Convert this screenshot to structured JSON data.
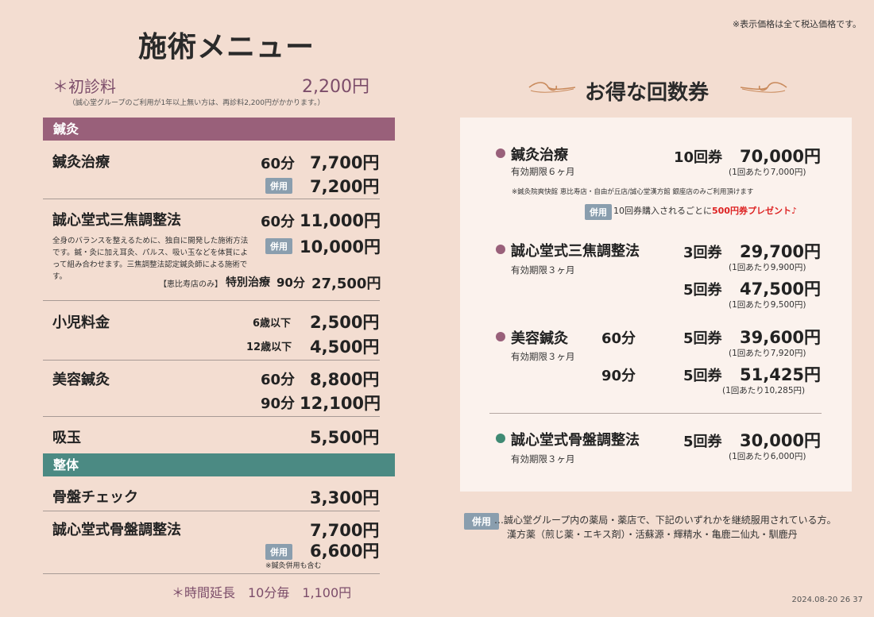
{
  "title": "施術メニュー",
  "tax_note": "※表示価格は全て税込価格です。",
  "first_visit": {
    "label": "＊初診料",
    "price": "2,200円",
    "note": "（誠心堂グループのご利用が1年以上無い方は、再診料2,200円がかかります。）"
  },
  "section_acupuncture": "鍼灸",
  "section_seitai": "整体",
  "combined_tag": "併用",
  "menu": {
    "hari": {
      "name": "鍼灸治療",
      "m60": "60分",
      "p60": "7,700円",
      "pc": "7,200円"
    },
    "sansho": {
      "name": "誠心堂式三焦調整法",
      "m60": "60分",
      "p60": "11,000円",
      "pc": "10,000円",
      "desc": "全身のバランスを整えるために、独自に開発した施術方法です。鍼・灸に加え耳灸、パルス、吸い玉などを体質によって組み合わせます。三焦調整法認定鍼灸師による施術です。",
      "special_prefix": "【恵比寿店のみ】",
      "special_name": "特別治療",
      "special_min": "90分",
      "special_price": "27,500円"
    },
    "child": {
      "name": "小児料金",
      "a1": "6歳以下",
      "p1": "2,500円",
      "a2": "12歳以下",
      "p2": "4,500円"
    },
    "biyo": {
      "name": "美容鍼灸",
      "m60": "60分",
      "p60": "8,800円",
      "m90": "90分",
      "p90": "12,100円"
    },
    "kyugyoku": {
      "name": "吸玉",
      "price": "5,500円"
    },
    "kotsuban_check": {
      "name": "骨盤チェック",
      "price": "3,300円"
    },
    "kotsuban": {
      "name": "誠心堂式骨盤調整法",
      "price": "7,700円",
      "pc": "6,600円",
      "note": "※鍼灸併用も含む"
    }
  },
  "extension": "＊時間延長　10分毎　1,100円",
  "coupon": {
    "title": "お得な回数券",
    "hari": {
      "name": "鍼灸治療",
      "valid": "有効期限６ヶ月",
      "tix": "10回券",
      "price": "70,000円",
      "per": "(1回あたり7,000円)",
      "note": "※鍼灸院爽快館 恵比寿店・自由が丘店/誠心堂漢方館 銀座店のみご利用頂けます",
      "present_pre": "10回券購入されるごとに",
      "present": "500円券プレゼント♪"
    },
    "sansho": {
      "name": "誠心堂式三焦調整法",
      "valid": "有効期限３ヶ月",
      "t1": "3回券",
      "p1": "29,700円",
      "per1": "(1回あたり9,900円)",
      "t2": "5回券",
      "p2": "47,500円",
      "per2": "(1回あたり9,500円)"
    },
    "biyo": {
      "name": "美容鍼灸",
      "valid": "有効期限３ヶ月",
      "m1": "60分",
      "t1": "5回券",
      "p1": "39,600円",
      "per1": "(1回あたり7,920円)",
      "m2": "90分",
      "t2": "5回券",
      "p2": "51,425円",
      "per2": "(1回あたり10,285円)"
    },
    "kotsuban": {
      "name": "誠心堂式骨盤調整法",
      "valid": "有効期限３ヶ月",
      "tix": "5回券",
      "price": "30,000円",
      "per": "(1回あたり6,000円)"
    }
  },
  "footnote": {
    "line1": "…誠心堂グループ内の薬局・薬店で、下記のいずれかを継続服用されている方。",
    "line2": "漢方薬（煎じ薬・エキス剤）・活蘇源・輝精水・亀鹿二仙丸・馴鹿丹"
  },
  "date": "2024.08-20 26 37",
  "colors": {
    "purple": "#99607a",
    "teal": "#4b8a83",
    "dot_purple": "#99607a",
    "dot_teal": "#3f8a73"
  }
}
